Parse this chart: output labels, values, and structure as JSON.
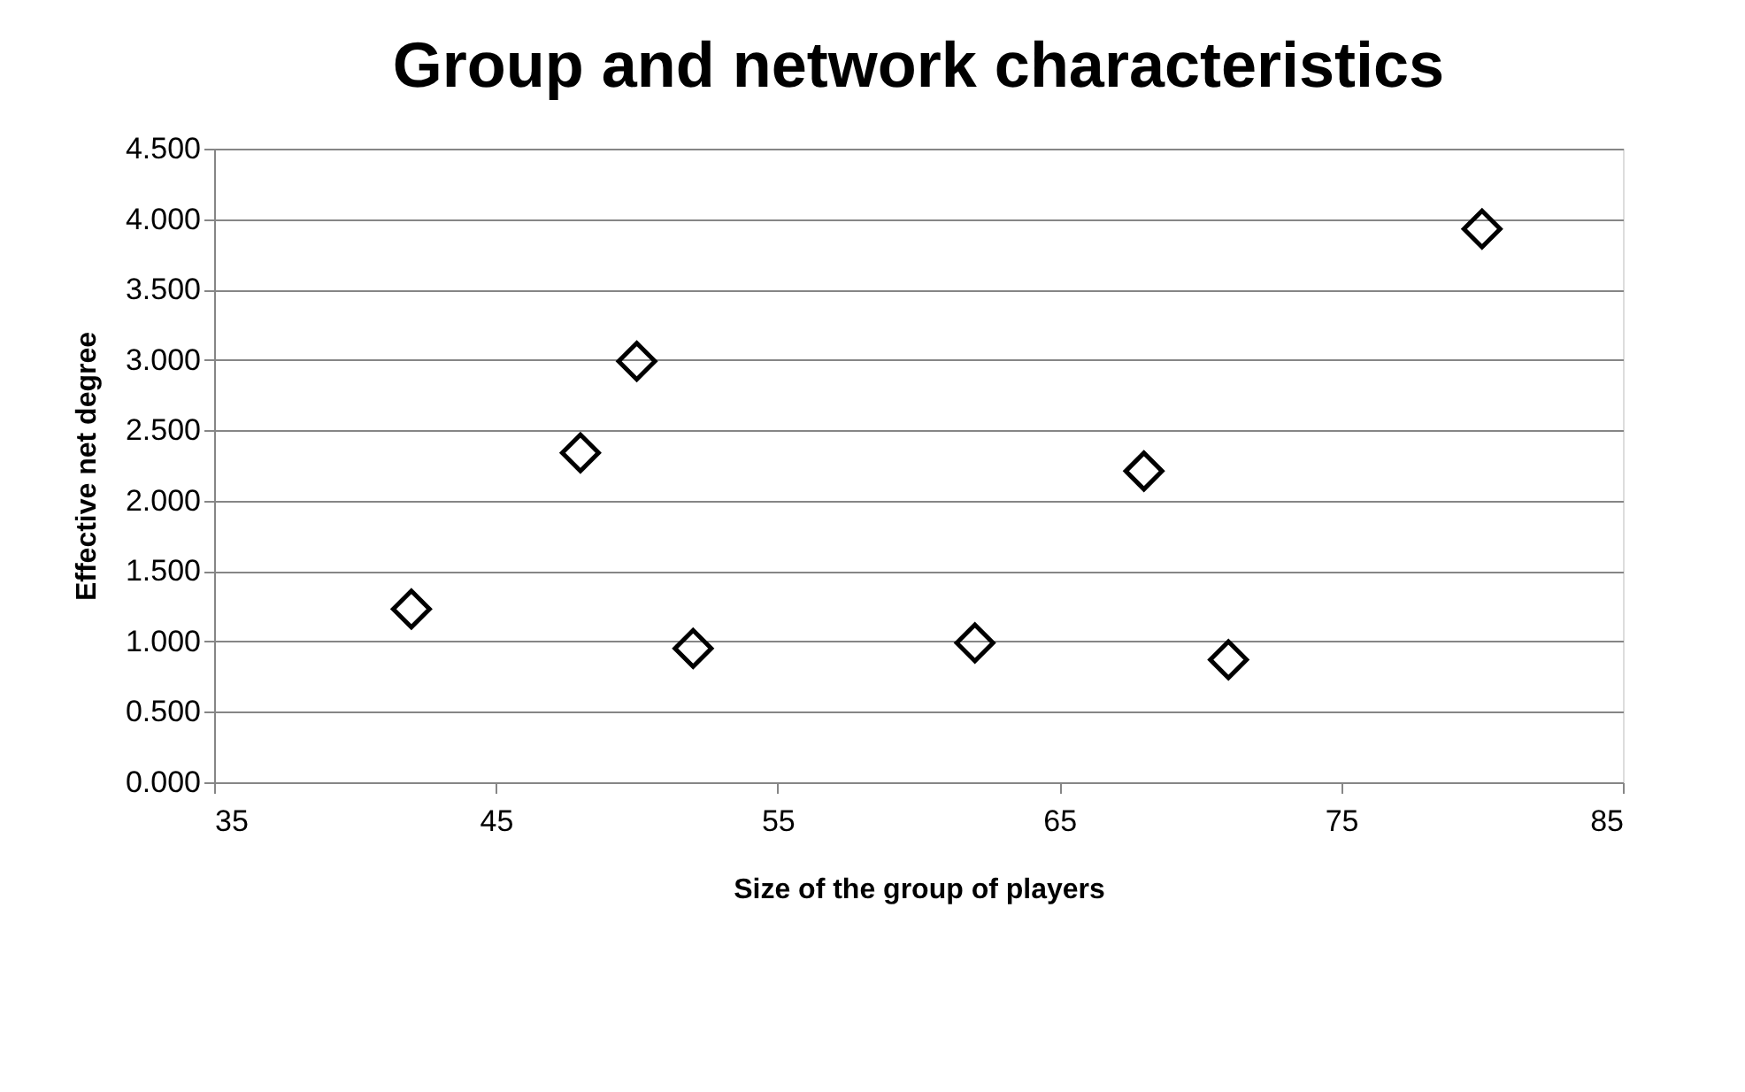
{
  "chart_data": {
    "type": "scatter",
    "title": "Group and network characteristics",
    "xlabel": "Size of the group of players",
    "ylabel": "Effective net degree",
    "x": [
      42,
      48,
      50,
      52,
      62,
      68,
      71,
      80
    ],
    "series": [
      {
        "color": "#000000",
        "values": [
          1.23,
          2.34,
          2.99,
          0.95,
          0.99,
          2.21,
          0.87,
          3.93
        ]
      }
    ],
    "xlim": [
      35,
      85
    ],
    "xticks": [
      35,
      45,
      55,
      65,
      75,
      85
    ],
    "ylim": [
      0,
      4.5
    ],
    "yticks": [
      {
        "value": 0,
        "label": "0.000"
      },
      {
        "value": 0.5,
        "label": "0.500"
      },
      {
        "value": 1,
        "label": "1.000"
      },
      {
        "value": 1.5,
        "label": "1.500"
      },
      {
        "value": 2,
        "label": "2.000"
      },
      {
        "value": 2.5,
        "label": "2.500"
      },
      {
        "value": 3,
        "label": "3.000"
      },
      {
        "value": 3.5,
        "label": "3.500"
      },
      {
        "value": 4,
        "label": "4.000"
      },
      {
        "value": 4.5,
        "label": "4.500"
      }
    ],
    "grid": "y",
    "marker": "diamond",
    "legend": false
  }
}
